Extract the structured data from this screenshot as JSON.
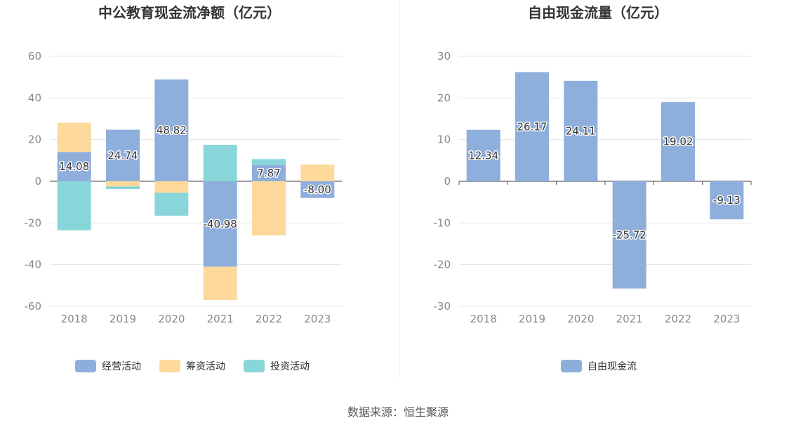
{
  "source": "数据来源：恒生聚源",
  "chart_data": [
    {
      "type": "bar",
      "stacked": true,
      "title": "中公教育现金流净额（亿元）",
      "categories": [
        "2018",
        "2019",
        "2020",
        "2021",
        "2022",
        "2023"
      ],
      "ylim": [
        -60,
        60
      ],
      "yticks": [
        "60",
        "40",
        "20",
        "0",
        "-20",
        "-40",
        "-60"
      ],
      "grid": true,
      "legend_position": "bottom",
      "series": [
        {
          "name": "经营活动",
          "color": "#8eaedc",
          "values": [
            14.08,
            24.74,
            48.82,
            -40.98,
            7.87,
            -8.0
          ],
          "labels": [
            "14.08",
            "24.74",
            "48.82",
            "-40.98",
            "7.87",
            "-8.00"
          ]
        },
        {
          "name": "筹资活动",
          "color": "#fdd99b",
          "values": [
            14.0,
            -2.5,
            -5.5,
            -16.0,
            -26.0,
            8.0
          ]
        },
        {
          "name": "投资活动",
          "color": "#88d6da",
          "values": [
            -23.5,
            -1.2,
            -11.0,
            17.5,
            2.8,
            0.0
          ]
        }
      ]
    },
    {
      "type": "bar",
      "title": "自由现金流量（亿元）",
      "categories": [
        "2018",
        "2019",
        "2020",
        "2021",
        "2022",
        "2023"
      ],
      "ylim": [
        -30,
        30
      ],
      "yticks": [
        "30",
        "20",
        "10",
        "0",
        "-10",
        "-20",
        "-30"
      ],
      "grid": true,
      "legend_position": "bottom",
      "series": [
        {
          "name": "自由现金流",
          "color": "#8eaedc",
          "values": [
            12.34,
            26.17,
            24.11,
            -25.72,
            19.02,
            -9.13
          ],
          "labels": [
            "12.34",
            "26.17",
            "24.11",
            "-25.72",
            "19.02",
            "-9.13"
          ]
        }
      ]
    }
  ]
}
